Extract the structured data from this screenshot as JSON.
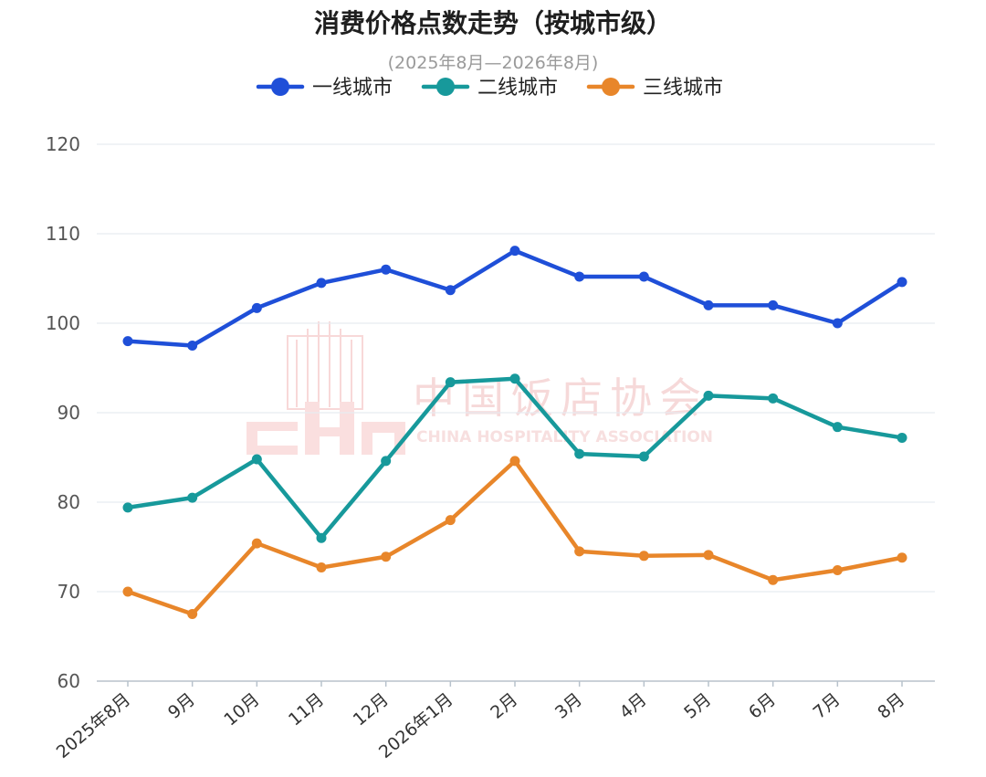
{
  "chart_data": {
    "type": "line",
    "title": "消费价格点数走势（按城市级）",
    "subtitle": "(2025年8月—2026年8月)",
    "categories": [
      "2025年8月",
      "9月",
      "10月",
      "11月",
      "12月",
      "2026年1月",
      "2月",
      "3月",
      "4月",
      "5月",
      "6月",
      "7月",
      "8月"
    ],
    "ylim": [
      60,
      120
    ],
    "yticks": [
      60,
      70,
      80,
      90,
      100,
      110,
      120
    ],
    "grid": true,
    "legend_position": "top-center",
    "series": [
      {
        "name": "一线城市",
        "color": "#1f4fd8",
        "values": [
          98.0,
          97.5,
          101.7,
          104.5,
          106.0,
          103.7,
          108.1,
          105.2,
          105.2,
          102.0,
          102.0,
          100.0,
          104.6
        ]
      },
      {
        "name": "二线城市",
        "color": "#17999b",
        "values": [
          79.4,
          80.5,
          84.8,
          76.0,
          84.6,
          93.4,
          93.8,
          85.4,
          85.1,
          91.9,
          91.6,
          88.4,
          87.2
        ]
      },
      {
        "name": "三线城市",
        "color": "#e8862a",
        "values": [
          70.0,
          67.5,
          75.4,
          72.7,
          73.9,
          78.0,
          84.6,
          74.5,
          74.0,
          74.1,
          71.3,
          72.4,
          73.8
        ]
      }
    ]
  },
  "watermark": {
    "name_cn": "中国饭店协会",
    "name_en": "CHINA HOSPITALITY ASSOCIATION",
    "logo_letters": "CHA"
  }
}
